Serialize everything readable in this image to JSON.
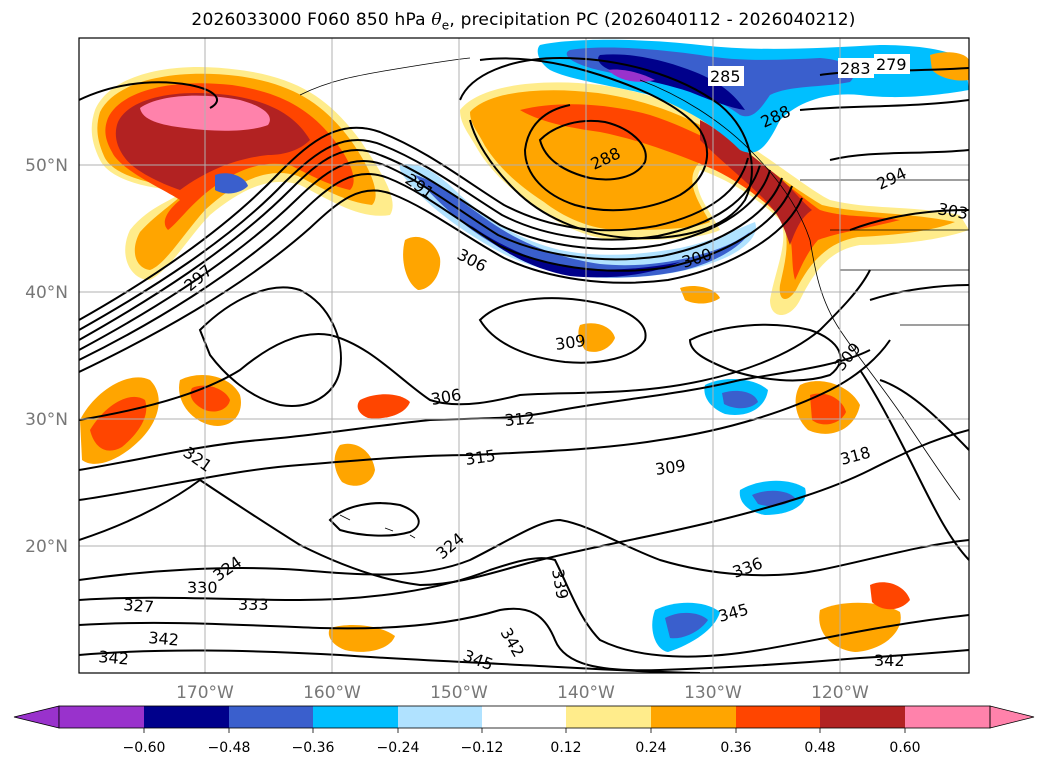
{
  "title": {
    "prefix": "2026033000 F060 850 hPa ",
    "symbol": "θ",
    "subscript": "e",
    "suffix": ", precipitation PC (2026040112 - 2026040212)"
  },
  "map": {
    "lat_labels": [
      "50°N",
      "40°N",
      "30°N",
      "20°N"
    ],
    "lon_labels": [
      "170°W",
      "160°W",
      "150°W",
      "140°W",
      "130°W",
      "120°W"
    ],
    "contour_labels": [
      "285",
      "283",
      "279",
      "288",
      "288",
      "291",
      "294",
      "297",
      "306",
      "300",
      "303",
      "309",
      "309",
      "306",
      "312",
      "315",
      "321",
      "309",
      "318",
      "324",
      "324",
      "330",
      "333",
      "327",
      "336",
      "339",
      "342",
      "342",
      "345",
      "342",
      "345",
      "342"
    ]
  },
  "colorbar": {
    "colors": [
      "#9932CC",
      "#00008B",
      "#3A5FCD",
      "#00BFFF",
      "#B0E2FF",
      "#FFFFFF",
      "#FFEC8B",
      "#FFA500",
      "#FF4500",
      "#B22222",
      "#FF82AB"
    ],
    "tick_labels": [
      "−0.60",
      "−0.48",
      "−0.36",
      "−0.24",
      "−0.12",
      "0.12",
      "0.24",
      "0.36",
      "0.48",
      "0.60"
    ]
  }
}
